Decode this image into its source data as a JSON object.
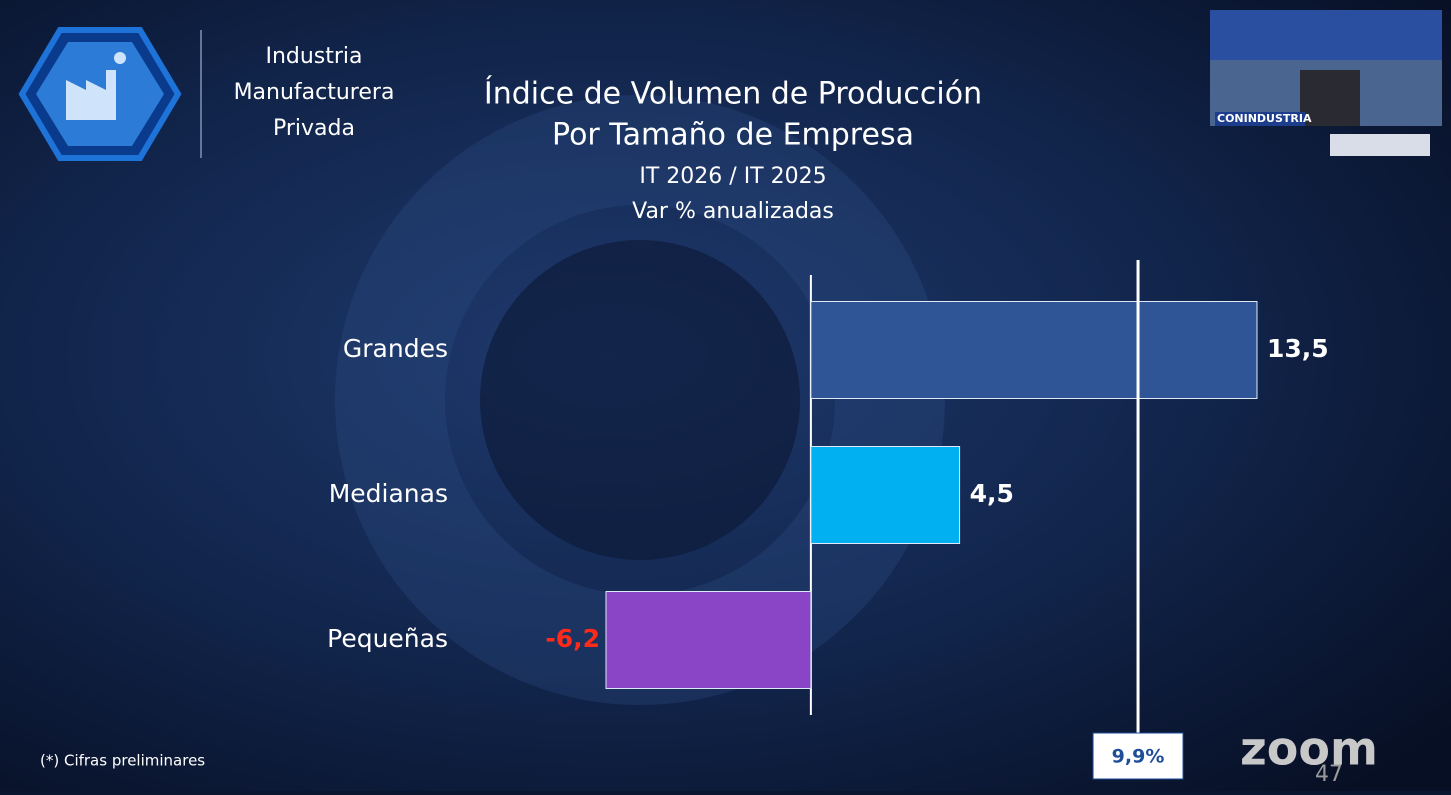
{
  "header": {
    "lines": [
      "Industria",
      "Manufacturera",
      "Privada"
    ]
  },
  "chart_data": {
    "type": "bar",
    "orientation": "horizontal",
    "title": [
      "Índice de Volumen de Producción",
      "Por Tamaño de Empresa"
    ],
    "subtitle": [
      "IT 2026 / IT 2025",
      "Var % anualizadas"
    ],
    "categories": [
      "Grandes",
      "Medianas",
      "Pequeñas"
    ],
    "values": [
      13.5,
      4.5,
      -6.2
    ],
    "value_labels": [
      "13,5",
      "4,5",
      "-6,2"
    ],
    "colors": [
      "#2f5597",
      "#00b0f0",
      "#8a45c6"
    ],
    "label_color": "#ffffff",
    "negative_label_color": "#ff2a1a",
    "reference_line": {
      "value": 9.9,
      "label": "9,9%"
    }
  },
  "footnote": "(*) Cifras preliminares",
  "overlay": {
    "brand": "zoom",
    "slide_number": "47",
    "video_banner": "CONINDUSTRIA"
  }
}
